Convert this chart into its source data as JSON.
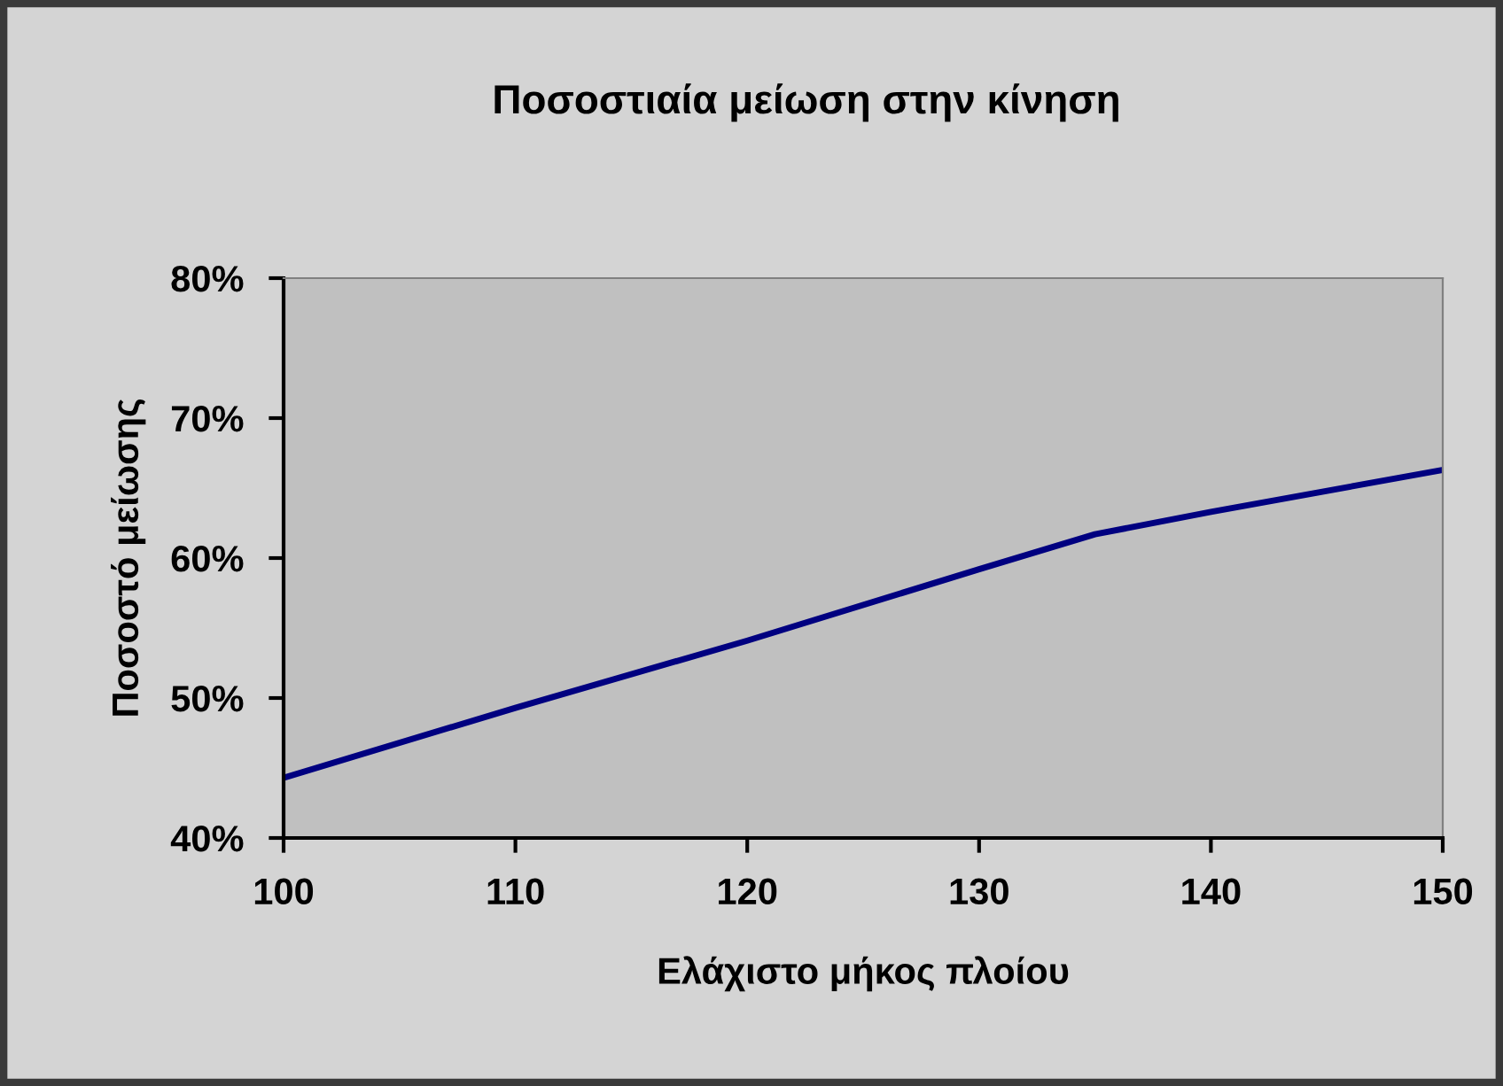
{
  "chart_data": {
    "type": "line",
    "title": "Ποσοστιαία μείωση στην κίνηση",
    "xlabel": "Ελάχιστο μήκος πλοίου",
    "ylabel": "Ποσοστό μείωσης",
    "x": [
      100,
      110,
      120,
      130,
      135,
      140,
      150
    ],
    "series": [
      {
        "color": "#000080",
        "values": [
          44.3,
          49.3,
          54.1,
          59.2,
          61.7,
          63.3,
          66.3
        ]
      }
    ],
    "xlim": [
      100,
      150
    ],
    "xticks": [
      100,
      110,
      120,
      130,
      140,
      150
    ],
    "ylim": [
      40,
      80
    ],
    "yticks": [
      {
        "value": 40,
        "label": "40%"
      },
      {
        "value": 50,
        "label": "50%"
      },
      {
        "value": 60,
        "label": "60%"
      },
      {
        "value": 70,
        "label": "70%"
      },
      {
        "value": 80,
        "label": "80%"
      }
    ],
    "grid": false,
    "legend": false,
    "marker": "none",
    "line_style": "solid"
  }
}
